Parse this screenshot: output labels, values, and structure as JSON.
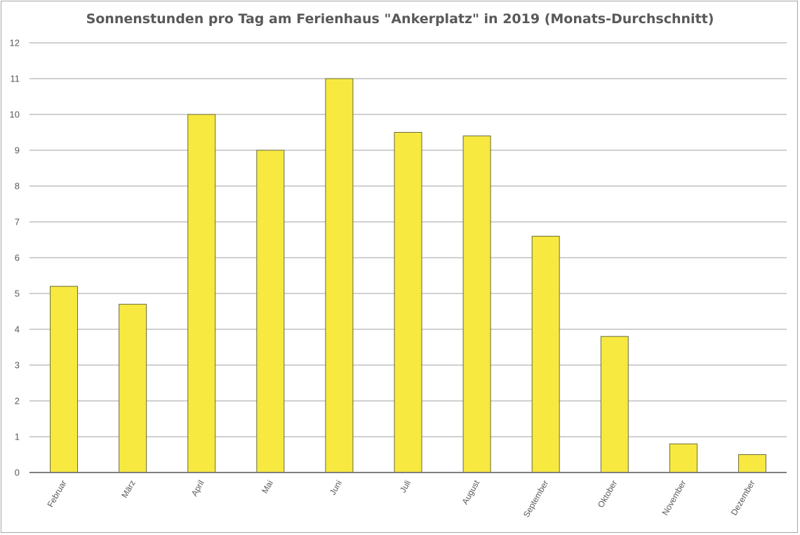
{
  "chart_data": {
    "type": "bar",
    "title": "Sonnenstunden pro Tag am Ferienhaus \"Ankerplatz\" in 2019 (Monats-Durchschnitt)",
    "xlabel": "",
    "ylabel": "",
    "categories": [
      "Februar",
      "März",
      "April",
      "Mai",
      "Juni",
      "Juli",
      "August",
      "September",
      "Oktober",
      "November",
      "Dezember"
    ],
    "values": [
      5.2,
      4.7,
      10.0,
      9.0,
      11.0,
      9.5,
      9.4,
      6.6,
      3.8,
      0.8,
      0.5
    ],
    "ylim": [
      0,
      12
    ],
    "yticks": [
      "0",
      "1",
      "2",
      "3",
      "4",
      "5",
      "6",
      "7",
      "8",
      "9",
      "10",
      "11",
      "12"
    ],
    "grid": true,
    "legend": "none",
    "colors": {
      "bar_fill": "#f7e940",
      "bar_stroke": "#6b6b3a",
      "grid": "#b3b3b3",
      "axis": "#7f7f7f"
    }
  }
}
